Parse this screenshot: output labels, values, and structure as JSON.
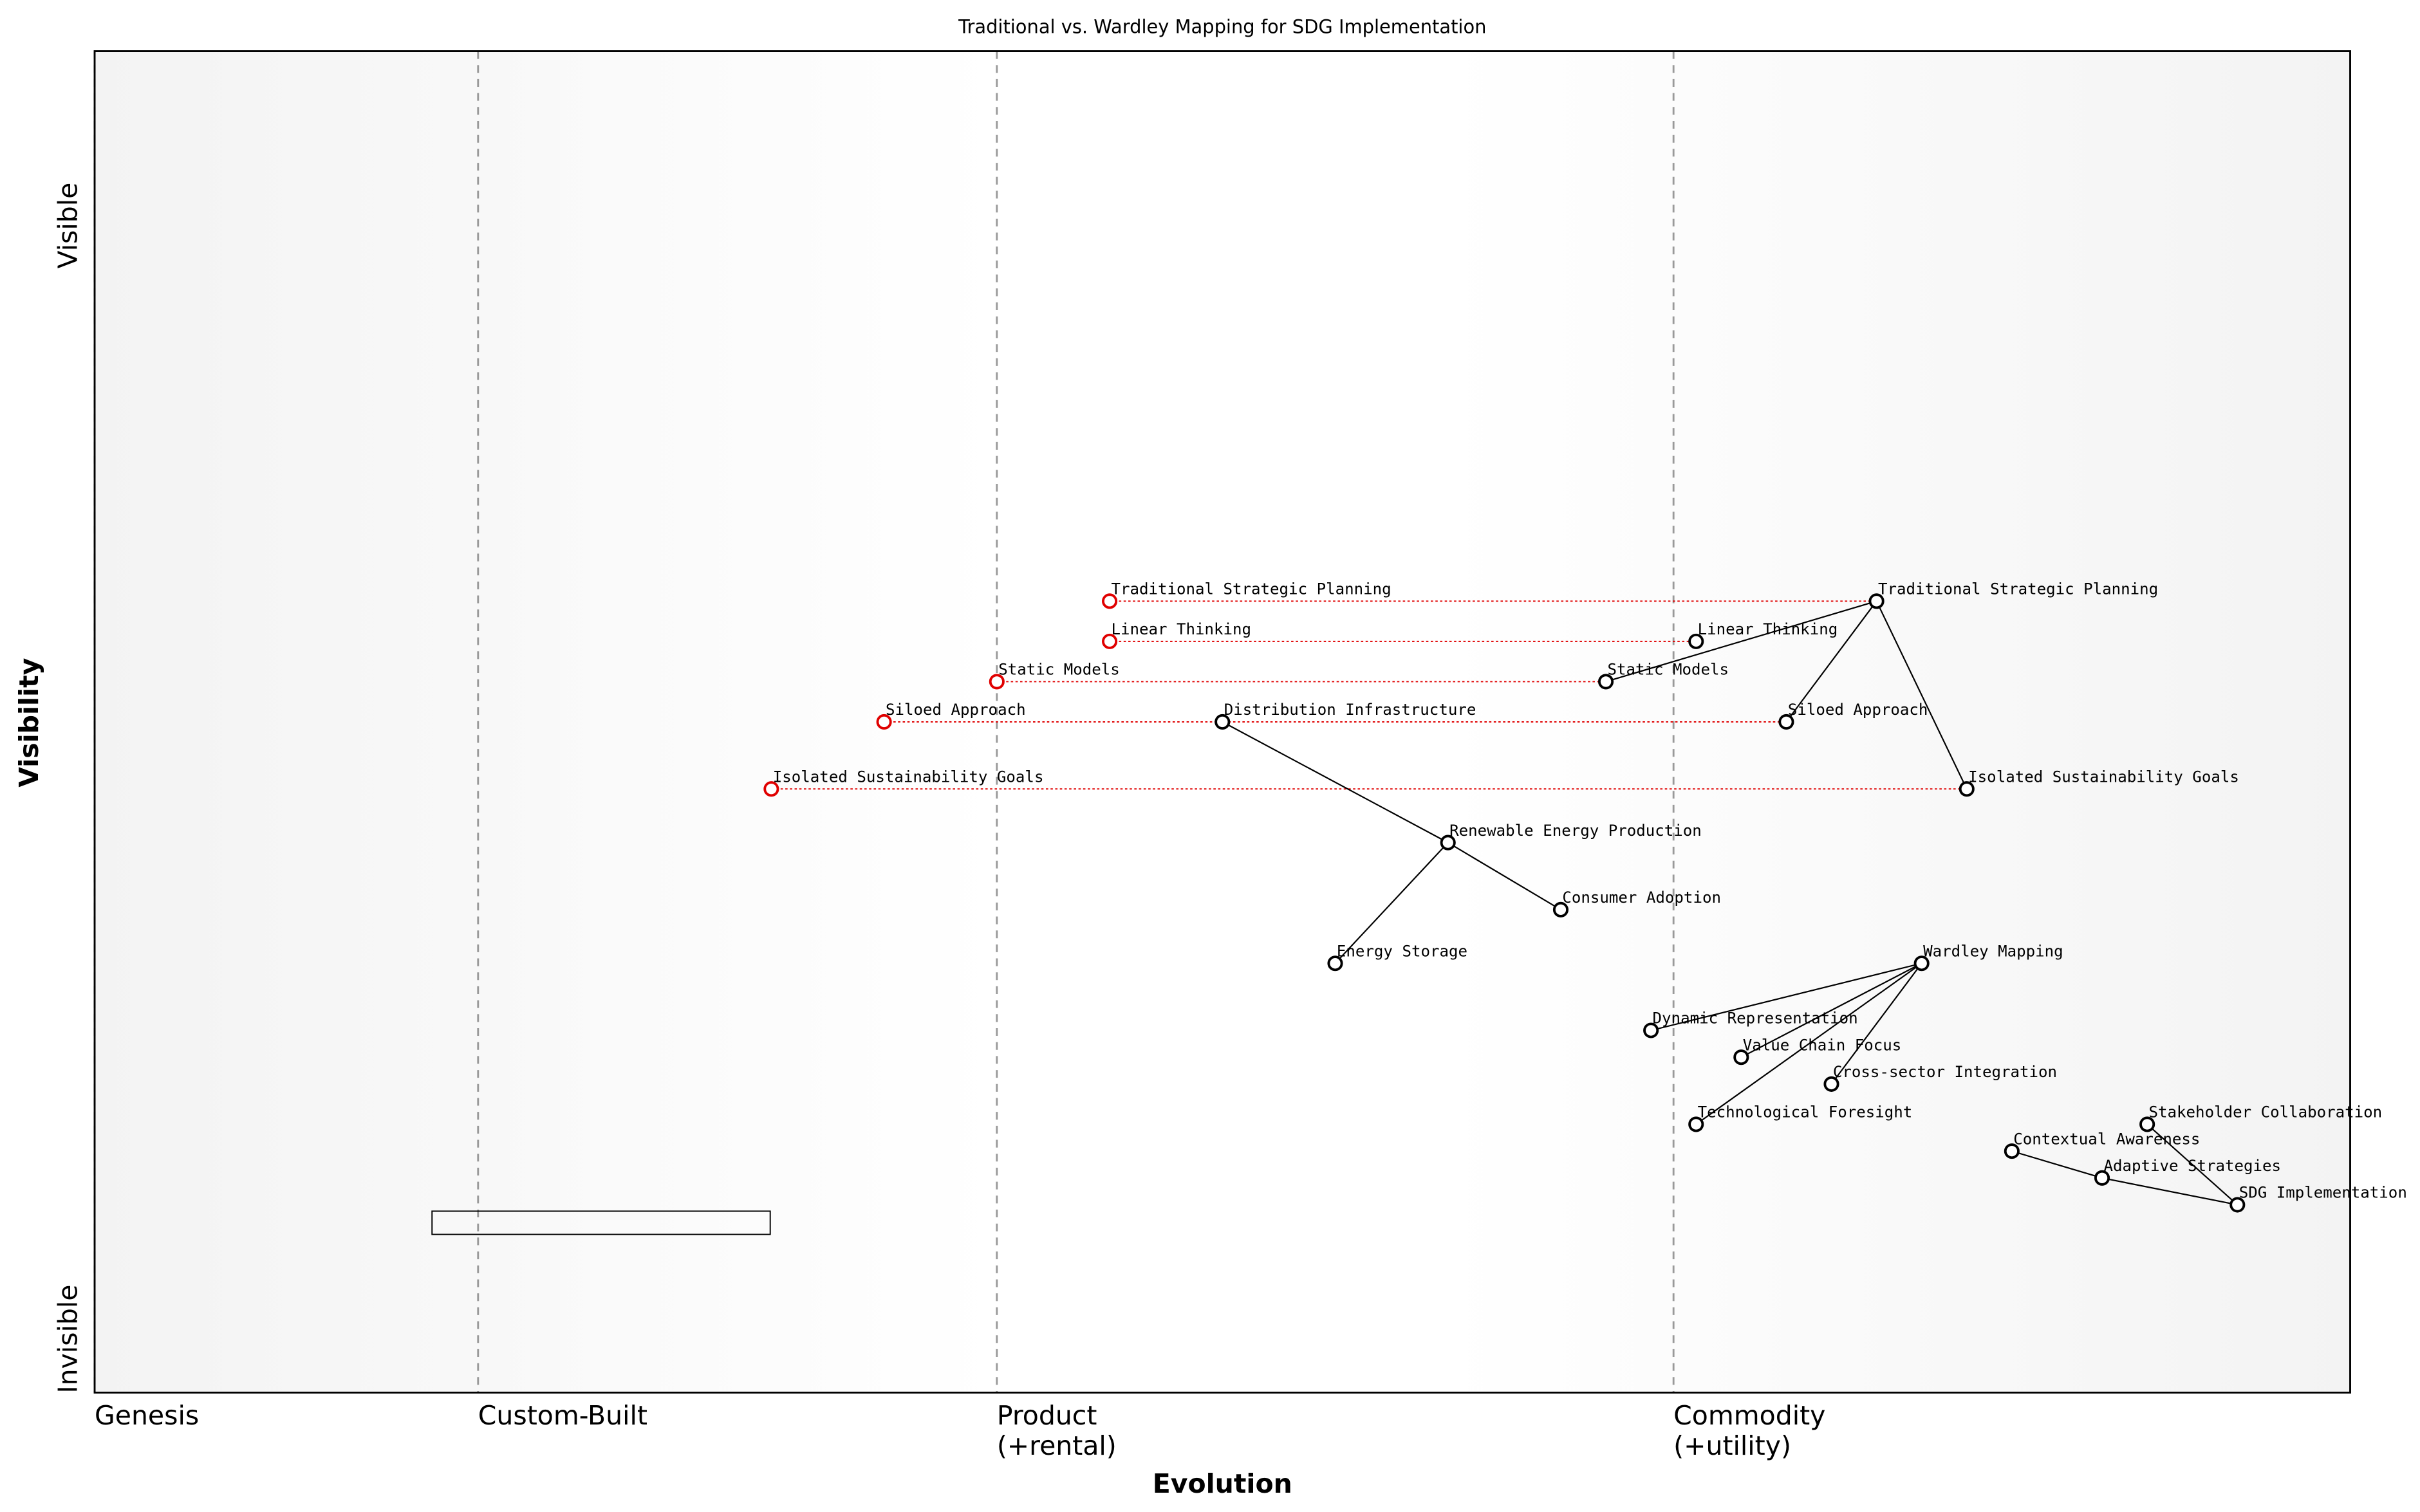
{
  "chart_data": {
    "type": "wardley",
    "title": "Traditional vs. Wardley Mapping for SDG Implementation",
    "xlabel": "Evolution",
    "ylabel": "Visibility",
    "xlim": [
      0,
      1
    ],
    "ylim": [
      0,
      1
    ],
    "xticks": [
      {
        "value": 0,
        "label": "Genesis"
      },
      {
        "value": 0.17,
        "label": "Custom-Built"
      },
      {
        "value": 0.4,
        "label": "Product\n(+rental)"
      },
      {
        "value": 0.7,
        "label": "Commodity\n(+utility)"
      }
    ],
    "yticks": [
      {
        "value": 0.04,
        "label": "Invisible"
      },
      {
        "value": 0.87,
        "label": "Visible"
      }
    ],
    "components": [
      {
        "name": "Traditional Strategic Planning",
        "x": 0.79,
        "y": 0.59
      },
      {
        "name": "Linear Thinking",
        "x": 0.71,
        "y": 0.56
      },
      {
        "name": "Static Models",
        "x": 0.67,
        "y": 0.53
      },
      {
        "name": "Siloed Approach",
        "x": 0.75,
        "y": 0.5
      },
      {
        "name": "Isolated Sustainability Goals",
        "x": 0.83,
        "y": 0.45
      },
      {
        "name": "Distribution Infrastructure",
        "x": 0.5,
        "y": 0.5
      },
      {
        "name": "Renewable Energy Production",
        "x": 0.6,
        "y": 0.41
      },
      {
        "name": "Consumer Adoption",
        "x": 0.65,
        "y": 0.36
      },
      {
        "name": "Energy Storage",
        "x": 0.55,
        "y": 0.32
      },
      {
        "name": "Wardley Mapping",
        "x": 0.81,
        "y": 0.32
      },
      {
        "name": "Dynamic Representation",
        "x": 0.69,
        "y": 0.27
      },
      {
        "name": "Value Chain Focus",
        "x": 0.73,
        "y": 0.25
      },
      {
        "name": "Cross-sector Integration",
        "x": 0.77,
        "y": 0.23
      },
      {
        "name": "Technological Foresight",
        "x": 0.71,
        "y": 0.2
      },
      {
        "name": "Stakeholder Collaboration",
        "x": 0.91,
        "y": 0.2
      },
      {
        "name": "Contextual Awareness",
        "x": 0.85,
        "y": 0.18
      },
      {
        "name": "Adaptive Strategies",
        "x": 0.89,
        "y": 0.16
      },
      {
        "name": "SDG Implementation",
        "x": 0.95,
        "y": 0.14
      }
    ],
    "traditional": [
      {
        "name": "Traditional Strategic Planning",
        "x": 0.45,
        "y": 0.59
      },
      {
        "name": "Linear Thinking",
        "x": 0.45,
        "y": 0.56
      },
      {
        "name": "Static Models",
        "x": 0.4,
        "y": 0.53
      },
      {
        "name": "Siloed Approach",
        "x": 0.35,
        "y": 0.5
      },
      {
        "name": "Isolated Sustainability Goals",
        "x": 0.3,
        "y": 0.45
      }
    ],
    "traditional_color": "#e00000",
    "links": [
      [
        "Traditional Strategic Planning",
        "Static Models"
      ],
      [
        "Traditional Strategic Planning",
        "Siloed Approach"
      ],
      [
        "Traditional Strategic Planning",
        "Isolated Sustainability Goals"
      ],
      [
        "Distribution Infrastructure",
        "Renewable Energy Production"
      ],
      [
        "Renewable Energy Production",
        "Consumer Adoption"
      ],
      [
        "Renewable Energy Production",
        "Energy Storage"
      ],
      [
        "Wardley Mapping",
        "Dynamic Representation"
      ],
      [
        "Wardley Mapping",
        "Value Chain Focus"
      ],
      [
        "Wardley Mapping",
        "Cross-sector Integration"
      ],
      [
        "Wardley Mapping",
        "Technological Foresight"
      ],
      [
        "SDG Implementation",
        "Adaptive Strategies"
      ],
      [
        "SDG Implementation",
        "Stakeholder Collaboration"
      ],
      [
        "Adaptive Strategies",
        "Contextual Awareness"
      ]
    ]
  }
}
